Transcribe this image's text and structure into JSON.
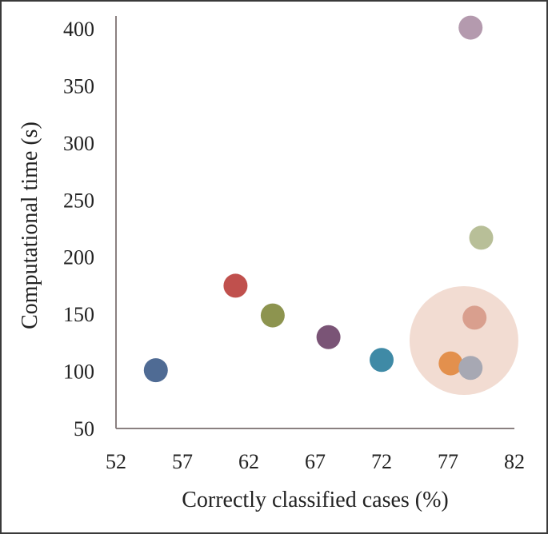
{
  "chart_data": {
    "type": "scatter",
    "title": "",
    "xlabel": "Correctly classified cases (%)",
    "ylabel": "Computational time (s)",
    "xlim": [
      52,
      82
    ],
    "ylim": [
      50,
      400
    ],
    "xticks": [
      52,
      57,
      62,
      67,
      72,
      77,
      82
    ],
    "yticks": [
      50,
      100,
      150,
      200,
      250,
      300,
      350,
      400
    ],
    "grid": false,
    "legend": "none",
    "points": [
      {
        "x": 55.0,
        "y": 101,
        "color": "#4f6b94"
      },
      {
        "x": 61.0,
        "y": 175,
        "color": "#c0504d"
      },
      {
        "x": 63.8,
        "y": 149,
        "color": "#8d944f"
      },
      {
        "x": 68.0,
        "y": 130,
        "color": "#7a5476"
      },
      {
        "x": 72.0,
        "y": 110,
        "color": "#3f8aa6"
      },
      {
        "x": 77.2,
        "y": 107,
        "color": "#e3904d"
      },
      {
        "x": 78.7,
        "y": 103,
        "color": "#a7a8b3"
      },
      {
        "x": 79.0,
        "y": 147,
        "color": "#d99f8e"
      },
      {
        "x": 79.5,
        "y": 217,
        "color": "#b8bf98"
      },
      {
        "x": 78.7,
        "y": 401,
        "color": "#b49aae"
      }
    ],
    "highlight": {
      "x": 78.2,
      "y": 127,
      "color": "#f2dcd2"
    }
  }
}
